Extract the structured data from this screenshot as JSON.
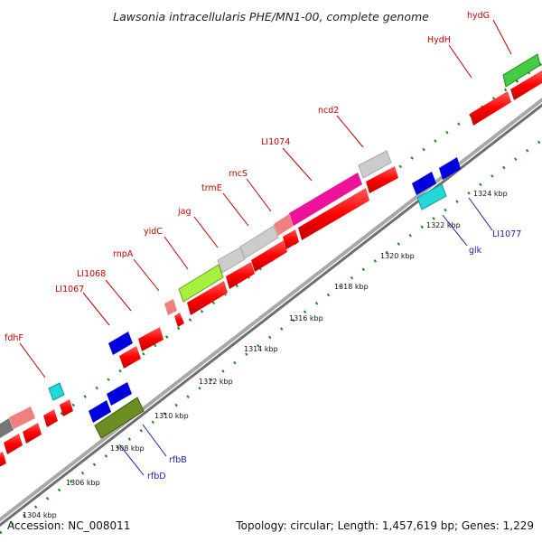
{
  "title": "Lawsonia intracellularis PHE/MN1-00, complete genome",
  "footer": {
    "accession": "Accession: NC_008011",
    "summary": "Topology: circular; Length: 1,457,619 bp; Genes: 1,229"
  },
  "colors": {
    "backbone": "#9a9a9a",
    "tick_dash": "#1a8a1a",
    "label_red": "#c00000",
    "label_blue": "#1a1aaa",
    "forward_feature": "#ff0000",
    "reverse_feature": "#0000dd"
  },
  "scale_labels": [
    "1304 kbp",
    "1306 kbp",
    "1308 kbp",
    "1310 kbp",
    "1312 kbp",
    "1314 kbp",
    "1316 kbp",
    "1318 kbp",
    "1320 kbp",
    "1322 kbp",
    "1324 kbp"
  ],
  "forward_gene_labels": [
    "hydG",
    "HydH",
    "ncd2",
    "LI1074",
    "rncS",
    "trmE",
    "jag",
    "yidC",
    "rnpA",
    "LI1068",
    "LI1067",
    "fdhF"
  ],
  "reverse_gene_labels": [
    "LI1077",
    "glk",
    "rfbB",
    "rfbD"
  ]
}
